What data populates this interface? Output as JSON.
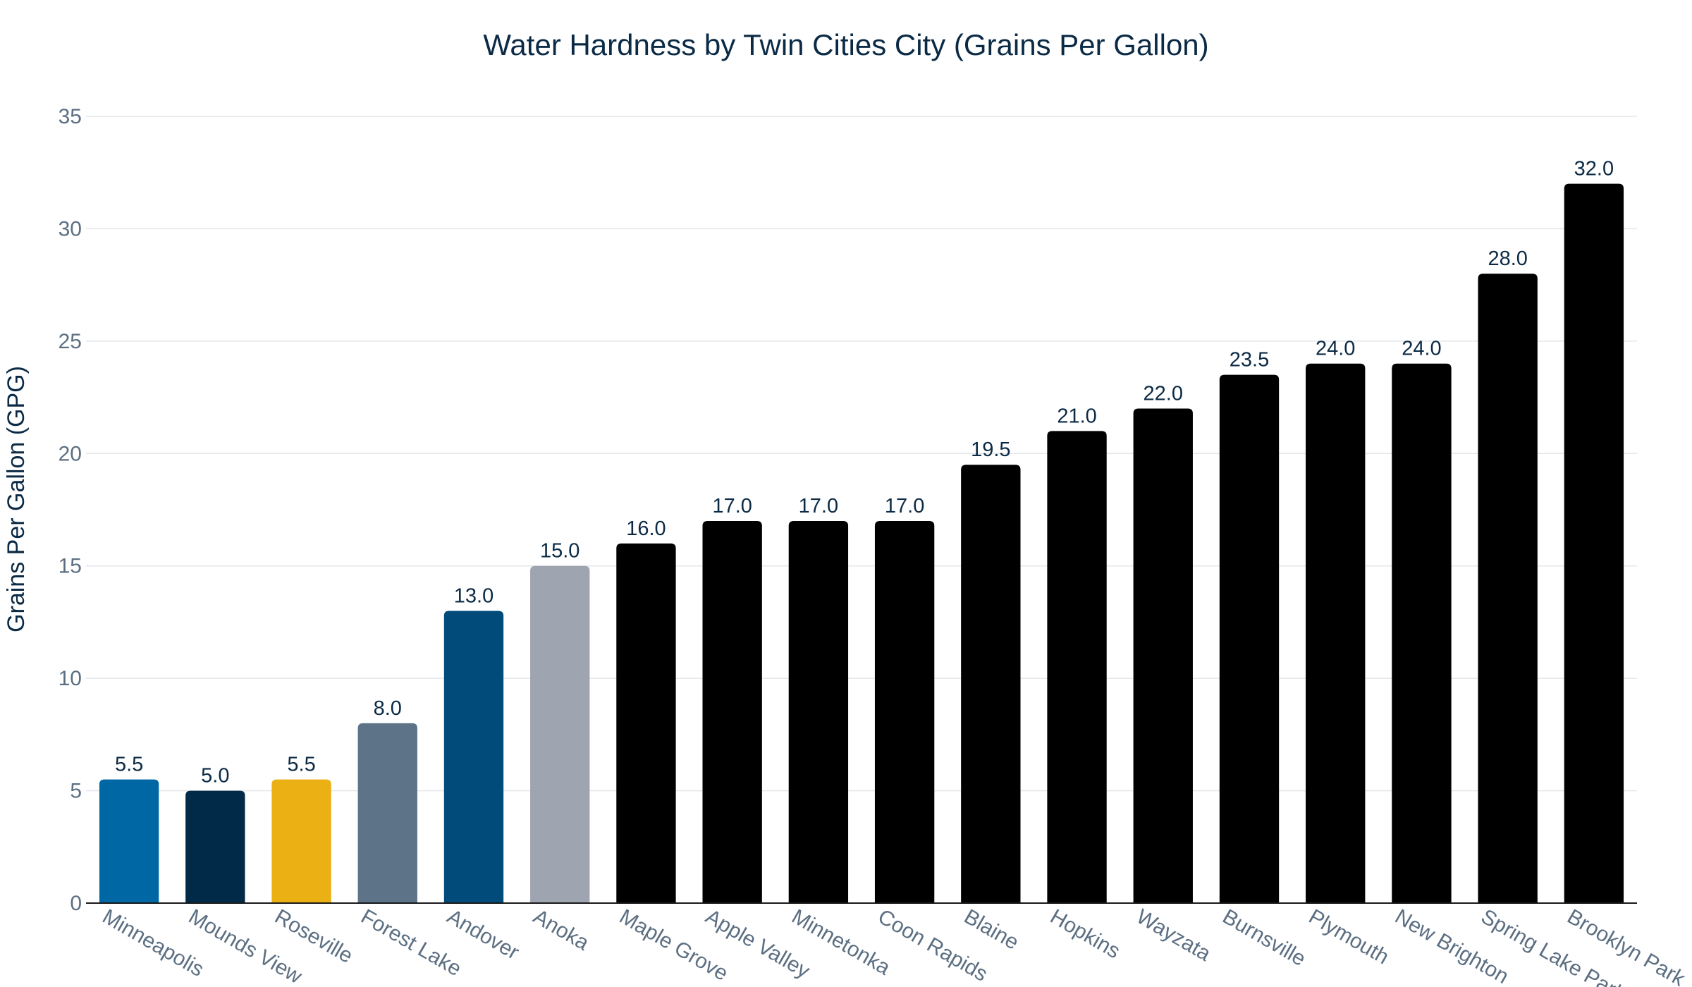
{
  "chart_data": {
    "type": "bar",
    "title": "Water Hardness by Twin Cities City (Grains Per Gallon)",
    "xlabel": "",
    "ylabel": "Grains Per Gallon (GPG)",
    "ylim": [
      0,
      35
    ],
    "yticks": [
      0,
      5,
      10,
      15,
      20,
      25,
      30,
      35
    ],
    "grid": true,
    "categories": [
      "Minneapolis",
      "Mounds View",
      "Roseville",
      "Forest Lake",
      "Andover",
      "Anoka",
      "Maple Grove",
      "Apple Valley",
      "Minnetonka",
      "Coon Rapids",
      "Blaine",
      "Hopkins",
      "Wayzata",
      "Burnsville",
      "Plymouth",
      "New Brighton",
      "Spring Lake Park",
      "Brooklyn Park"
    ],
    "values": [
      5.5,
      5.0,
      5.5,
      8.0,
      13.0,
      15.0,
      16.0,
      17.0,
      17.0,
      17.0,
      19.5,
      21.0,
      22.0,
      23.5,
      24.0,
      24.0,
      28.0,
      32.0
    ],
    "value_labels": [
      "5.5",
      "5.0",
      "5.5",
      "8.0",
      "13.0",
      "15.0",
      "16.0",
      "17.0",
      "17.0",
      "17.0",
      "19.5",
      "21.0",
      "22.0",
      "23.5",
      "24.0",
      "24.0",
      "28.0",
      "32.0"
    ],
    "bar_colors": [
      "#0067a5",
      "#002a48",
      "#eab014",
      "#5d7388",
      "#004b7a",
      "#9ea4b0",
      "#000000",
      "#000000",
      "#000000",
      "#000000",
      "#000000",
      "#000000",
      "#000000",
      "#000000",
      "#000000",
      "#000000",
      "#000000",
      "#000000"
    ]
  }
}
